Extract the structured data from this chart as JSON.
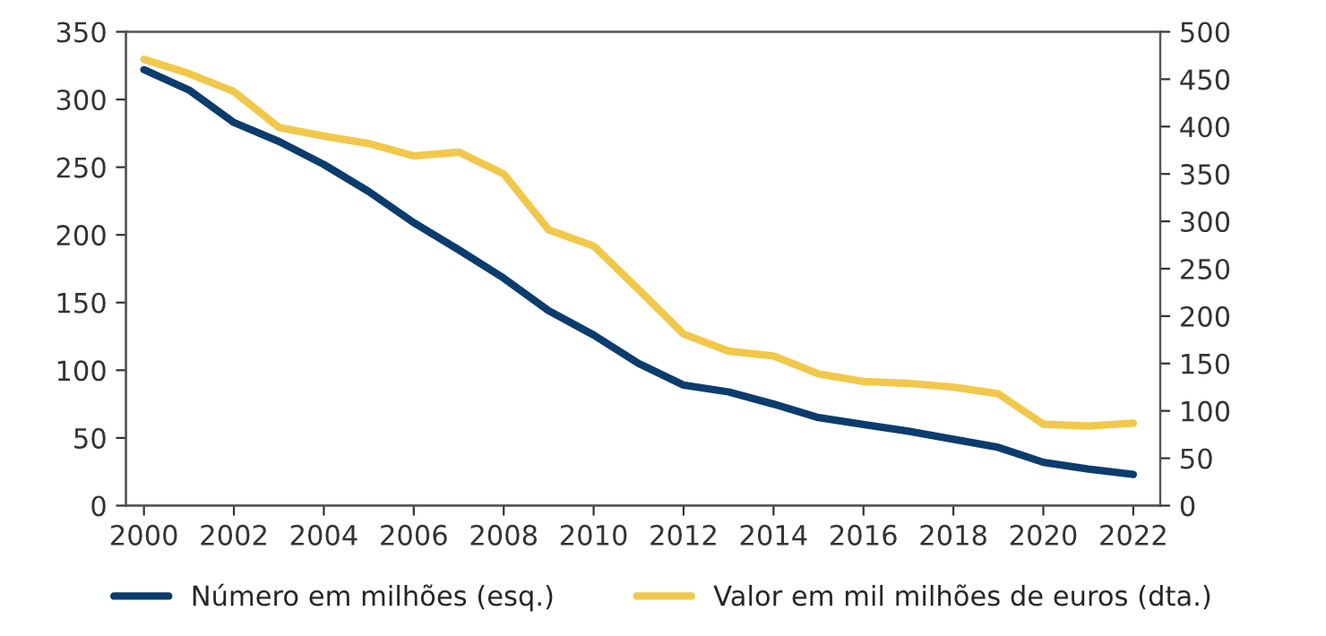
{
  "chart_data": {
    "type": "line",
    "x": [
      2000,
      2001,
      2002,
      2003,
      2004,
      2005,
      2006,
      2007,
      2008,
      2009,
      2010,
      2011,
      2012,
      2013,
      2014,
      2015,
      2016,
      2017,
      2018,
      2019,
      2020,
      2021,
      2022
    ],
    "series": [
      {
        "name": "Número em milhões (esq.)",
        "color": "#0b3c6e",
        "values": [
          322,
          307,
          283,
          269,
          252,
          232,
          209,
          189,
          168,
          144,
          126,
          105,
          89,
          84,
          75,
          65,
          60,
          55,
          49,
          43,
          32,
          27,
          23
        ]
      },
      {
        "name": "Valor em mil milhões de euros (dta.)",
        "color": "#f2c84b",
        "axis": "y2",
        "values": [
          471,
          456,
          437,
          399,
          390,
          382,
          369,
          373,
          350,
          291,
          274,
          228,
          181,
          163,
          158,
          139,
          131,
          129,
          125,
          118,
          86,
          84,
          87
        ]
      }
    ],
    "xlim": [
      1999.6,
      2022.6
    ],
    "xticks": [
      2000,
      2002,
      2004,
      2006,
      2008,
      2010,
      2012,
      2014,
      2016,
      2018,
      2020,
      2022
    ],
    "ylim": [
      0,
      350
    ],
    "yticks": [
      0,
      50,
      100,
      150,
      200,
      250,
      300,
      350
    ],
    "y2lim": [
      0,
      500
    ],
    "y2ticks": [
      0,
      50,
      100,
      150,
      200,
      250,
      300,
      350,
      400,
      450,
      500
    ],
    "grid": false,
    "legend": "bottom",
    "marker": "none",
    "line_style": "solid"
  }
}
